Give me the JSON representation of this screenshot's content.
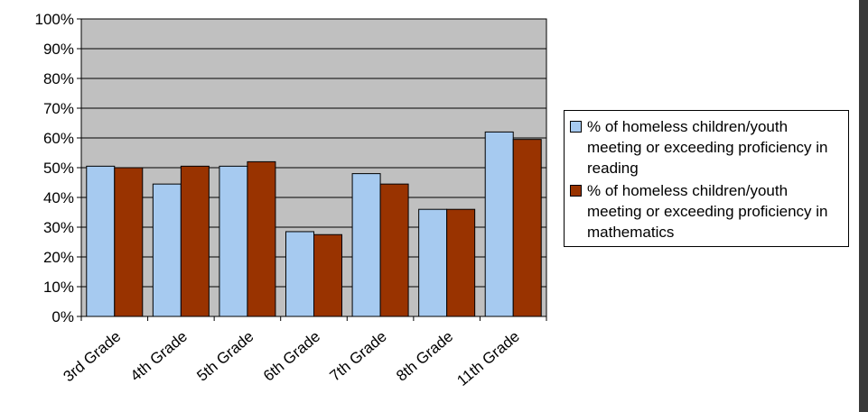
{
  "chart_data": {
    "type": "bar",
    "categories": [
      "3rd Grade",
      "4th Grade",
      "5th Grade",
      "6th Grade",
      "7th Grade",
      "8th Grade",
      "11th Grade"
    ],
    "series": [
      {
        "name": "% of homeless children/youth meeting or exceeding proficiency in reading",
        "values": [
          50.5,
          44.5,
          50.5,
          28.5,
          48,
          36,
          62
        ],
        "color": "#a6caf0"
      },
      {
        "name": "% of homeless children/youth meeting or exceeding proficiency in mathematics",
        "values": [
          50,
          50.5,
          52,
          27.5,
          44.5,
          36,
          59.5
        ],
        "color": "#993300"
      }
    ],
    "ylim": [
      0,
      100
    ],
    "yticks": [
      "0%",
      "10%",
      "20%",
      "30%",
      "40%",
      "50%",
      "60%",
      "70%",
      "80%",
      "90%",
      "100%"
    ],
    "grid": true,
    "plot_background": "#c0c0c0",
    "legend_position": "right"
  }
}
